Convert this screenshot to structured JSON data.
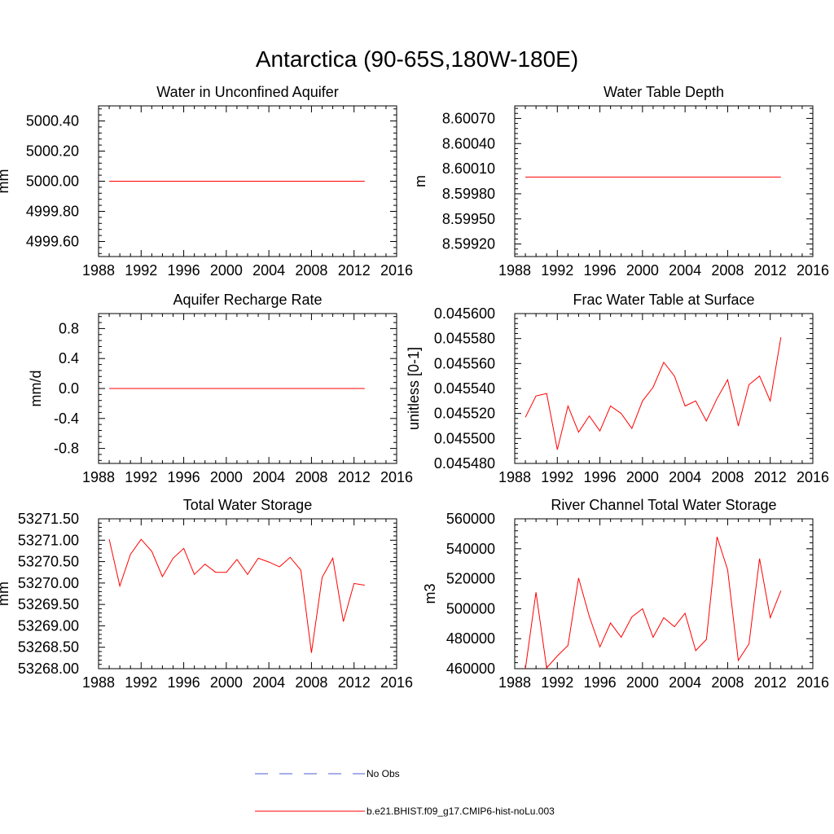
{
  "figure_title": "Antarctica (90-65S,180W-180E)",
  "colors": {
    "model_line": "#ff0000",
    "obs_line": "#4f5bd5",
    "axis": "#000000"
  },
  "legend": {
    "obs_label": "No Obs",
    "model_label": "b.e21.BHIST.f09_g17.CMIP6-hist-noLu.003"
  },
  "chart_data": [
    {
      "type": "line",
      "title": "Water in Unconfined Aquifer",
      "xlabel": "",
      "ylabel": "mm",
      "xlim": [
        1988,
        2016
      ],
      "ylim": [
        4999.5,
        5000.5
      ],
      "xticks": [
        1988,
        1992,
        1996,
        2000,
        2004,
        2008,
        2012,
        2016
      ],
      "yticks": [
        4999.6,
        4999.8,
        5000.0,
        5000.2,
        5000.4
      ],
      "yticklabels": [
        "4999.60",
        "4999.80",
        "5000.00",
        "5000.20",
        "5000.40"
      ],
      "x": [
        1989,
        2013
      ],
      "series": [
        {
          "name": "b.e21.BHIST.f09_g17.CMIP6-hist-noLu.003",
          "values": [
            5000.0,
            5000.0
          ]
        }
      ]
    },
    {
      "type": "line",
      "title": "Water Table Depth",
      "xlabel": "",
      "ylabel": "m",
      "xlim": [
        1988,
        2016
      ],
      "ylim": [
        8.59905,
        8.60085
      ],
      "xticks": [
        1988,
        1992,
        1996,
        2000,
        2004,
        2008,
        2012,
        2016
      ],
      "yticks": [
        8.5992,
        8.5995,
        8.5998,
        8.6001,
        8.6004,
        8.6007
      ],
      "yticklabels": [
        "8.59920",
        "8.59950",
        "8.59980",
        "8.60010",
        "8.60040",
        "8.60070"
      ],
      "x": [
        1989,
        2013
      ],
      "series": [
        {
          "name": "b.e21.BHIST.f09_g17.CMIP6-hist-noLu.003",
          "values": [
            8.6,
            8.6
          ]
        }
      ]
    },
    {
      "type": "line",
      "title": "Aquifer Recharge Rate",
      "xlabel": "",
      "ylabel": "mm/d",
      "xlim": [
        1988,
        2016
      ],
      "ylim": [
        -1.0,
        1.0
      ],
      "xticks": [
        1988,
        1992,
        1996,
        2000,
        2004,
        2008,
        2012,
        2016
      ],
      "yticks": [
        -0.8,
        -0.4,
        0.0,
        0.4,
        0.8
      ],
      "yticklabels": [
        "-0.8",
        "-0.4",
        "0.0",
        "0.4",
        "0.8"
      ],
      "x": [
        1989,
        2013
      ],
      "series": [
        {
          "name": "b.e21.BHIST.f09_g17.CMIP6-hist-noLu.003",
          "values": [
            0.0,
            0.0
          ]
        }
      ]
    },
    {
      "type": "line",
      "title": "Frac Water Table at Surface",
      "xlabel": "",
      "ylabel": "unitless [0-1]",
      "xlim": [
        1988,
        2016
      ],
      "ylim": [
        0.04548,
        0.0456
      ],
      "xticks": [
        1988,
        1992,
        1996,
        2000,
        2004,
        2008,
        2012,
        2016
      ],
      "yticks": [
        0.04548,
        0.0455,
        0.04552,
        0.04554,
        0.04556,
        0.04558,
        0.0456
      ],
      "yticklabels": [
        "0.045480",
        "0.045500",
        "0.045520",
        "0.045540",
        "0.045560",
        "0.045580",
        "0.045600"
      ],
      "x": [
        1989,
        1990,
        1991,
        1992,
        1993,
        1994,
        1995,
        1996,
        1997,
        1998,
        1999,
        2000,
        2001,
        2002,
        2003,
        2004,
        2005,
        2006,
        2007,
        2008,
        2009,
        2010,
        2011,
        2012,
        2013
      ],
      "series": [
        {
          "name": "b.e21.BHIST.f09_g17.CMIP6-hist-noLu.003",
          "values": [
            0.045517,
            0.045534,
            0.045536,
            0.045491,
            0.045526,
            0.045505,
            0.045518,
            0.045506,
            0.045526,
            0.04552,
            0.045508,
            0.04553,
            0.045541,
            0.045561,
            0.04555,
            0.045526,
            0.04553,
            0.045514,
            0.045532,
            0.045547,
            0.04551,
            0.045543,
            0.04555,
            0.04553,
            0.045581
          ]
        }
      ]
    },
    {
      "type": "line",
      "title": "Total Water Storage",
      "xlabel": "",
      "ylabel": "mm",
      "xlim": [
        1988,
        2016
      ],
      "ylim": [
        53268.0,
        53271.5
      ],
      "xticks": [
        1988,
        1992,
        1996,
        2000,
        2004,
        2008,
        2012,
        2016
      ],
      "yticks": [
        53268.0,
        53268.5,
        53269.0,
        53269.5,
        53270.0,
        53270.5,
        53271.0,
        53271.5
      ],
      "yticklabels": [
        "53268.00",
        "53268.50",
        "53269.00",
        "53269.50",
        "53270.00",
        "53270.50",
        "53271.00",
        "53271.50"
      ],
      "x": [
        1989,
        1990,
        1991,
        1992,
        1993,
        1994,
        1995,
        1996,
        1997,
        1998,
        1999,
        2000,
        2001,
        2002,
        2003,
        2004,
        2005,
        2006,
        2007,
        2008,
        2009,
        2010,
        2011,
        2012,
        2013
      ],
      "series": [
        {
          "name": "b.e21.BHIST.f09_g17.CMIP6-hist-noLu.003",
          "values": [
            53271.02,
            53269.93,
            53270.67,
            53271.02,
            53270.74,
            53270.15,
            53270.58,
            53270.81,
            53270.2,
            53270.44,
            53270.25,
            53270.25,
            53270.55,
            53270.2,
            53270.58,
            53270.49,
            53270.38,
            53270.6,
            53270.3,
            53268.37,
            53270.13,
            53270.58,
            53269.1,
            53269.99,
            53269.95
          ]
        }
      ]
    },
    {
      "type": "line",
      "title": "River Channel Total Water Storage",
      "xlabel": "",
      "ylabel": "m3",
      "xlim": [
        1988,
        2016
      ],
      "ylim": [
        460000,
        560000
      ],
      "xticks": [
        1988,
        1992,
        1996,
        2000,
        2004,
        2008,
        2012,
        2016
      ],
      "yticks": [
        460000,
        480000,
        500000,
        520000,
        540000,
        560000
      ],
      "yticklabels": [
        "460000",
        "480000",
        "500000",
        "520000",
        "540000",
        "560000"
      ],
      "x": [
        1989,
        1990,
        1991,
        1992,
        1993,
        1994,
        1995,
        1996,
        1997,
        1998,
        1999,
        2000,
        2001,
        2002,
        2003,
        2004,
        2005,
        2006,
        2007,
        2008,
        2009,
        2010,
        2011,
        2012,
        2013
      ],
      "series": [
        {
          "name": "b.e21.BHIST.f09_g17.CMIP6-hist-noLu.003",
          "values": [
            460000,
            511000,
            460500,
            468500,
            475500,
            520500,
            495000,
            474500,
            490500,
            481000,
            494500,
            500000,
            481000,
            494000,
            488000,
            497000,
            472000,
            479500,
            548000,
            526000,
            465500,
            476500,
            533500,
            494000,
            512000
          ]
        }
      ]
    }
  ]
}
